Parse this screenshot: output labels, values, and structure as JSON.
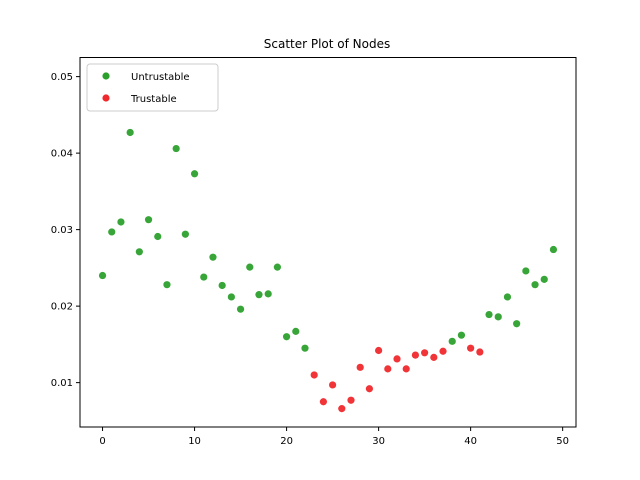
{
  "chart_data": {
    "type": "scatter",
    "title": "Scatter Plot of Nodes",
    "xlabel": "",
    "ylabel": "",
    "xlim": [
      -2.45,
      51.45
    ],
    "ylim": [
      0.0042,
      0.0525
    ],
    "xticks": [
      0,
      10,
      20,
      30,
      40,
      50
    ],
    "yticks": [
      0.01,
      0.02,
      0.03,
      0.04,
      0.05
    ],
    "ytick_labels": [
      "0.01",
      "0.02",
      "0.03",
      "0.04",
      "0.05"
    ],
    "grid": false,
    "legend_position": "top-left",
    "series": [
      {
        "name": "Untrustable",
        "color": "#2ca02c",
        "points": [
          [
            0,
            0.024
          ],
          [
            1,
            0.0297
          ],
          [
            2,
            0.031
          ],
          [
            3,
            0.0427
          ],
          [
            4,
            0.0271
          ],
          [
            5,
            0.0313
          ],
          [
            6,
            0.0291
          ],
          [
            7,
            0.0228
          ],
          [
            8,
            0.0406
          ],
          [
            9,
            0.0294
          ],
          [
            10,
            0.0373
          ],
          [
            11,
            0.0238
          ],
          [
            12,
            0.0264
          ],
          [
            13,
            0.0227
          ],
          [
            14,
            0.0212
          ],
          [
            15,
            0.0196
          ],
          [
            16,
            0.0251
          ],
          [
            17,
            0.0215
          ],
          [
            18,
            0.0216
          ],
          [
            19,
            0.0251
          ],
          [
            20,
            0.016
          ],
          [
            21,
            0.0167
          ],
          [
            22,
            0.0145
          ],
          [
            38,
            0.0154
          ],
          [
            39,
            0.0162
          ],
          [
            42,
            0.0189
          ],
          [
            43,
            0.0186
          ],
          [
            44,
            0.0212
          ],
          [
            45,
            0.0177
          ],
          [
            46,
            0.0246
          ],
          [
            47,
            0.0228
          ],
          [
            48,
            0.0235
          ],
          [
            49,
            0.0274
          ]
        ]
      },
      {
        "name": "Trustable",
        "color": "#f0292c",
        "points": [
          [
            23,
            0.011
          ],
          [
            24,
            0.0075
          ],
          [
            25,
            0.0097
          ],
          [
            26,
            0.0066
          ],
          [
            27,
            0.0077
          ],
          [
            28,
            0.012
          ],
          [
            29,
            0.0092
          ],
          [
            30,
            0.0142
          ],
          [
            31,
            0.0118
          ],
          [
            32,
            0.0131
          ],
          [
            33,
            0.0118
          ],
          [
            34,
            0.0136
          ],
          [
            35,
            0.0139
          ],
          [
            36,
            0.0133
          ],
          [
            37,
            0.0141
          ],
          [
            40,
            0.0145
          ],
          [
            41,
            0.014
          ]
        ]
      }
    ]
  }
}
